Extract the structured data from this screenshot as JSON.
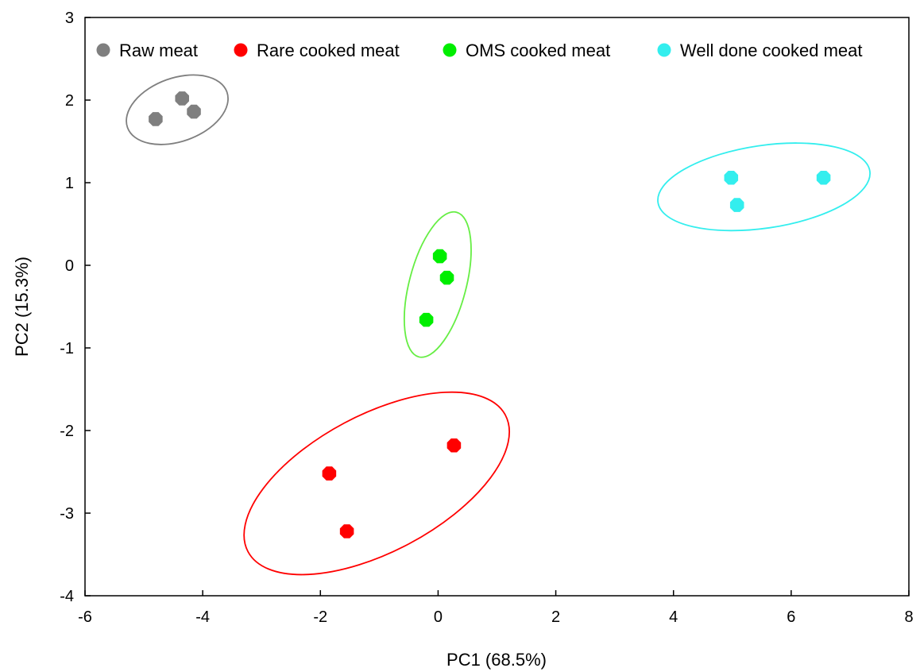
{
  "chart_data": {
    "type": "scatter",
    "title": "",
    "xlabel": "PC1 (68.5%)",
    "ylabel": "PC2 (15.3%)",
    "xlim": [
      -6,
      8
    ],
    "ylim": [
      -4,
      3
    ],
    "xticks": [
      -6,
      -4,
      -2,
      0,
      2,
      4,
      6,
      8
    ],
    "yticks": [
      -4,
      -3,
      -2,
      -1,
      0,
      1,
      2,
      3
    ],
    "grid": false,
    "legend_position": "top",
    "series": [
      {
        "name": "Raw meat",
        "color": "#7f7f7f",
        "ellipse_color": "#7f7f7f",
        "points": [
          [
            -4.8,
            1.77
          ],
          [
            -4.35,
            2.02
          ],
          [
            -4.15,
            1.86
          ]
        ]
      },
      {
        "name": "Rare cooked meat",
        "color": "#ff0000",
        "ellipse_color": "#ff0000",
        "points": [
          [
            -1.85,
            -2.52
          ],
          [
            -1.55,
            -3.22
          ],
          [
            0.27,
            -2.18
          ]
        ]
      },
      {
        "name": "OMS cooked meat",
        "color": "#00ee00",
        "ellipse_color": "#66ee44",
        "points": [
          [
            0.03,
            0.11
          ],
          [
            0.15,
            -0.15
          ],
          [
            -0.2,
            -0.66
          ]
        ]
      },
      {
        "name": "Well done cooked meat",
        "color": "#33eeee",
        "ellipse_color": "#33eeee",
        "points": [
          [
            4.98,
            1.06
          ],
          [
            5.08,
            0.73
          ],
          [
            6.55,
            1.06
          ]
        ]
      }
    ]
  }
}
